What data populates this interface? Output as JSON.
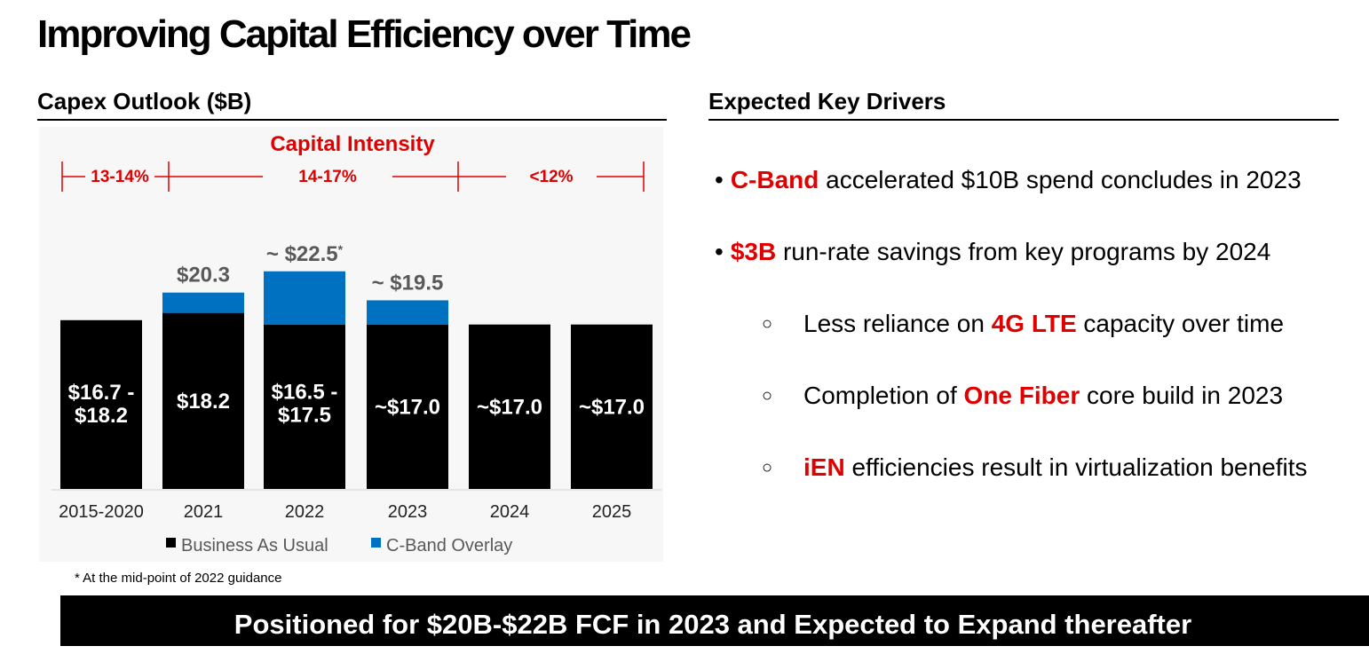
{
  "page": {
    "title": "Improving Capital Efficiency over Time",
    "left_heading": "Capex Outlook ($B)",
    "right_heading": "Expected Key Drivers",
    "footnote": "* At the mid-point of 2022 guidance",
    "banner": "Positioned for $20B-$22B FCF in 2023 and Expected to Expand thereafter"
  },
  "chart_data": {
    "type": "bar",
    "stacked": true,
    "title": "Capex Outlook ($B)",
    "xlabel": "",
    "ylabel": "",
    "categories": [
      "2015-2020",
      "2021",
      "2022",
      "2023",
      "2024",
      "2025"
    ],
    "series": [
      {
        "name": "Business As Usual",
        "color": "#000000",
        "values": [
          17.45,
          18.2,
          17.0,
          17.0,
          17.0,
          17.0
        ]
      },
      {
        "name": "C-Band Overlay",
        "color": "#0070c0",
        "values": [
          0,
          2.1,
          5.5,
          2.5,
          0,
          0
        ]
      }
    ],
    "ylim": [
      0,
      23
    ],
    "segment_labels": [
      "$16.7 -\n$18.2",
      "$18.2",
      "$16.5 -\n$17.5",
      "~$17.0",
      "~$17.0",
      "~$17.0"
    ],
    "total_labels": [
      "",
      "$20.3",
      "~ $22.5",
      "~ $19.5",
      "",
      ""
    ],
    "total_label_footnote_marker": "*",
    "capital_intensity": {
      "title": "Capital Intensity",
      "ranges": [
        {
          "label": "13-14%",
          "span": [
            "2015-2020",
            "2021"
          ]
        },
        {
          "label": "14-17%",
          "span": [
            "2021",
            "2023"
          ]
        },
        {
          "label": "<12%",
          "span": [
            "2023",
            "2025"
          ]
        }
      ]
    },
    "legend": [
      "Business As Usual",
      "C-Band Overlay"
    ],
    "legend_position": "bottom"
  },
  "drivers": [
    {
      "prefix": "",
      "highlight": "C-Band",
      "suffix": " accelerated $10B spend concludes in 2023",
      "level": 1,
      "bullet": "•"
    },
    {
      "prefix": "",
      "highlight": "$3B",
      "suffix": " run-rate savings from key programs by 2024",
      "level": 1,
      "bullet": "•"
    },
    {
      "prefix": "Less reliance on ",
      "highlight": "4G LTE",
      "suffix": " capacity over time",
      "level": 2,
      "bullet": "○"
    },
    {
      "prefix": "Completion of ",
      "highlight": "One Fiber",
      "suffix": " core build in 2023",
      "level": 2,
      "bullet": "○"
    },
    {
      "prefix": "",
      "highlight": "iEN",
      "suffix": " efficiencies result in virtualization benefits",
      "level": 2,
      "bullet": "○"
    }
  ],
  "colors": {
    "accent_red": "#e00000",
    "bau": "#000000",
    "cband": "#0070c0"
  }
}
